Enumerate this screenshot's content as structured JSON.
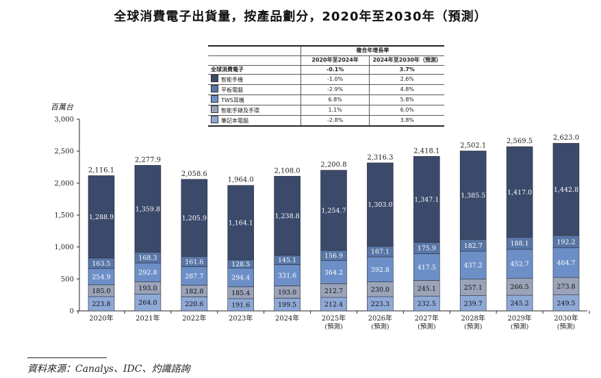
{
  "title": "全球消費電子出貨量，按產品劃分，2020年至2030年（預測）",
  "source": "資料來源：Canalys、IDC、灼識諮詢",
  "table": {
    "header": "複合年增長率",
    "col1": "2020年至2024年",
    "col2": "2024年至2030年（預測）",
    "total_label": "全球消費電子",
    "total_c1": "-0.1%",
    "total_c2": "3.7%",
    "rows": [
      {
        "label": "智能手機",
        "c1": "-1.0%",
        "c2": "2.6%",
        "color": "#3b4a6b"
      },
      {
        "label": "平板電腦",
        "c1": "-2.9%",
        "c2": "4.8%",
        "color": "#5876a6"
      },
      {
        "label": "TWS耳機",
        "c1": "6.8%",
        "c2": "5.8%",
        "color": "#6c8fc7"
      },
      {
        "label": "智能手錶及手環",
        "c1": "1.1%",
        "c2": "6.0%",
        "color": "#9aa3b8"
      },
      {
        "label": "筆記本電腦",
        "c1": "-2.8%",
        "c2": "3.8%",
        "color": "#8fa9d6"
      }
    ]
  },
  "chart_data": {
    "type": "bar",
    "stacked": true,
    "unit_label": "百萬台",
    "ylim": [
      0,
      3000
    ],
    "yticks": [
      "0",
      "500",
      "1,000",
      "1,500",
      "2,000",
      "2,500",
      "3,000"
    ],
    "categories": [
      "2020年",
      "2021年",
      "2022年",
      "2023年",
      "2024年",
      "2025年",
      "2026年",
      "2027年",
      "2028年",
      "2029年",
      "2030年"
    ],
    "category_sub": [
      "",
      "",
      "",
      "",
      "",
      "(預測)",
      "(預測)",
      "(預測)",
      "(預測)",
      "(預測)",
      "(預測)"
    ],
    "totals": [
      "2,116.1",
      "2,277.9",
      "2,058.6",
      "1,964.0",
      "2,108.0",
      "2,200.8",
      "2,316.3",
      "2,418.1",
      "2,502.1",
      "2,569.5",
      "2,623.0"
    ],
    "series": [
      {
        "name": "筆記本電腦",
        "color": "#8fa9d6",
        "values": [
          223.8,
          264.0,
          220.6,
          191.6,
          199.5,
          212.4,
          223.3,
          232.5,
          239.7,
          245.2,
          249.5
        ],
        "labels": [
          "223.8",
          "264.0",
          "220.6",
          "191.6",
          "199.5",
          "212.4",
          "223.3",
          "232.5",
          "239.7",
          "245.2",
          "249.5"
        ],
        "text_color": "#111"
      },
      {
        "name": "智能手錶及手環",
        "color": "#9aa3b8",
        "values": [
          185.0,
          193.0,
          182.8,
          185.4,
          193.0,
          212.7,
          230.0,
          245.1,
          257.1,
          266.5,
          273.8
        ],
        "labels": [
          "185.0",
          "193.0",
          "182.8",
          "185.4",
          "193.0",
          "212.7",
          "230.0",
          "245.1",
          "257.1",
          "266.5",
          "273.8"
        ],
        "text_color": "#111"
      },
      {
        "name": "TWS耳機",
        "color": "#6c8fc7",
        "values": [
          254.9,
          292.8,
          287.7,
          294.4,
          331.6,
          364.2,
          392.8,
          417.5,
          437.2,
          452.7,
          464.7
        ],
        "labels": [
          "254.9",
          "292.8",
          "287.7",
          "294.4",
          "331.6",
          "364.2",
          "392.8",
          "417.5",
          "437.2",
          "452.7",
          "464.7"
        ],
        "text_color": "#ffffff"
      },
      {
        "name": "平板電腦",
        "color": "#5876a6",
        "values": [
          163.5,
          168.3,
          161.6,
          128.5,
          145.1,
          156.9,
          167.1,
          175.9,
          182.7,
          188.1,
          192.2
        ],
        "labels": [
          "163.5",
          "168.3",
          "161.6",
          "128.5",
          "145.1",
          "156.9",
          "167.1",
          "175.9",
          "182.7",
          "188.1",
          "192.2"
        ],
        "text_color": "#ffffff"
      },
      {
        "name": "智能手機",
        "color": "#3b4a6b",
        "values": [
          1288.9,
          1359.8,
          1205.9,
          1164.1,
          1238.8,
          1254.7,
          1303.0,
          1347.1,
          1385.5,
          1417.0,
          1442.8
        ],
        "labels": [
          "1,288.9",
          "1,359.8",
          "1,205.9",
          "1,164.1",
          "1,238.8",
          "1,254.7",
          "1,303.0",
          "1,347.1",
          "1,385.5",
          "1,417.0",
          "1,442.8"
        ],
        "text_color": "#ffffff"
      }
    ]
  }
}
